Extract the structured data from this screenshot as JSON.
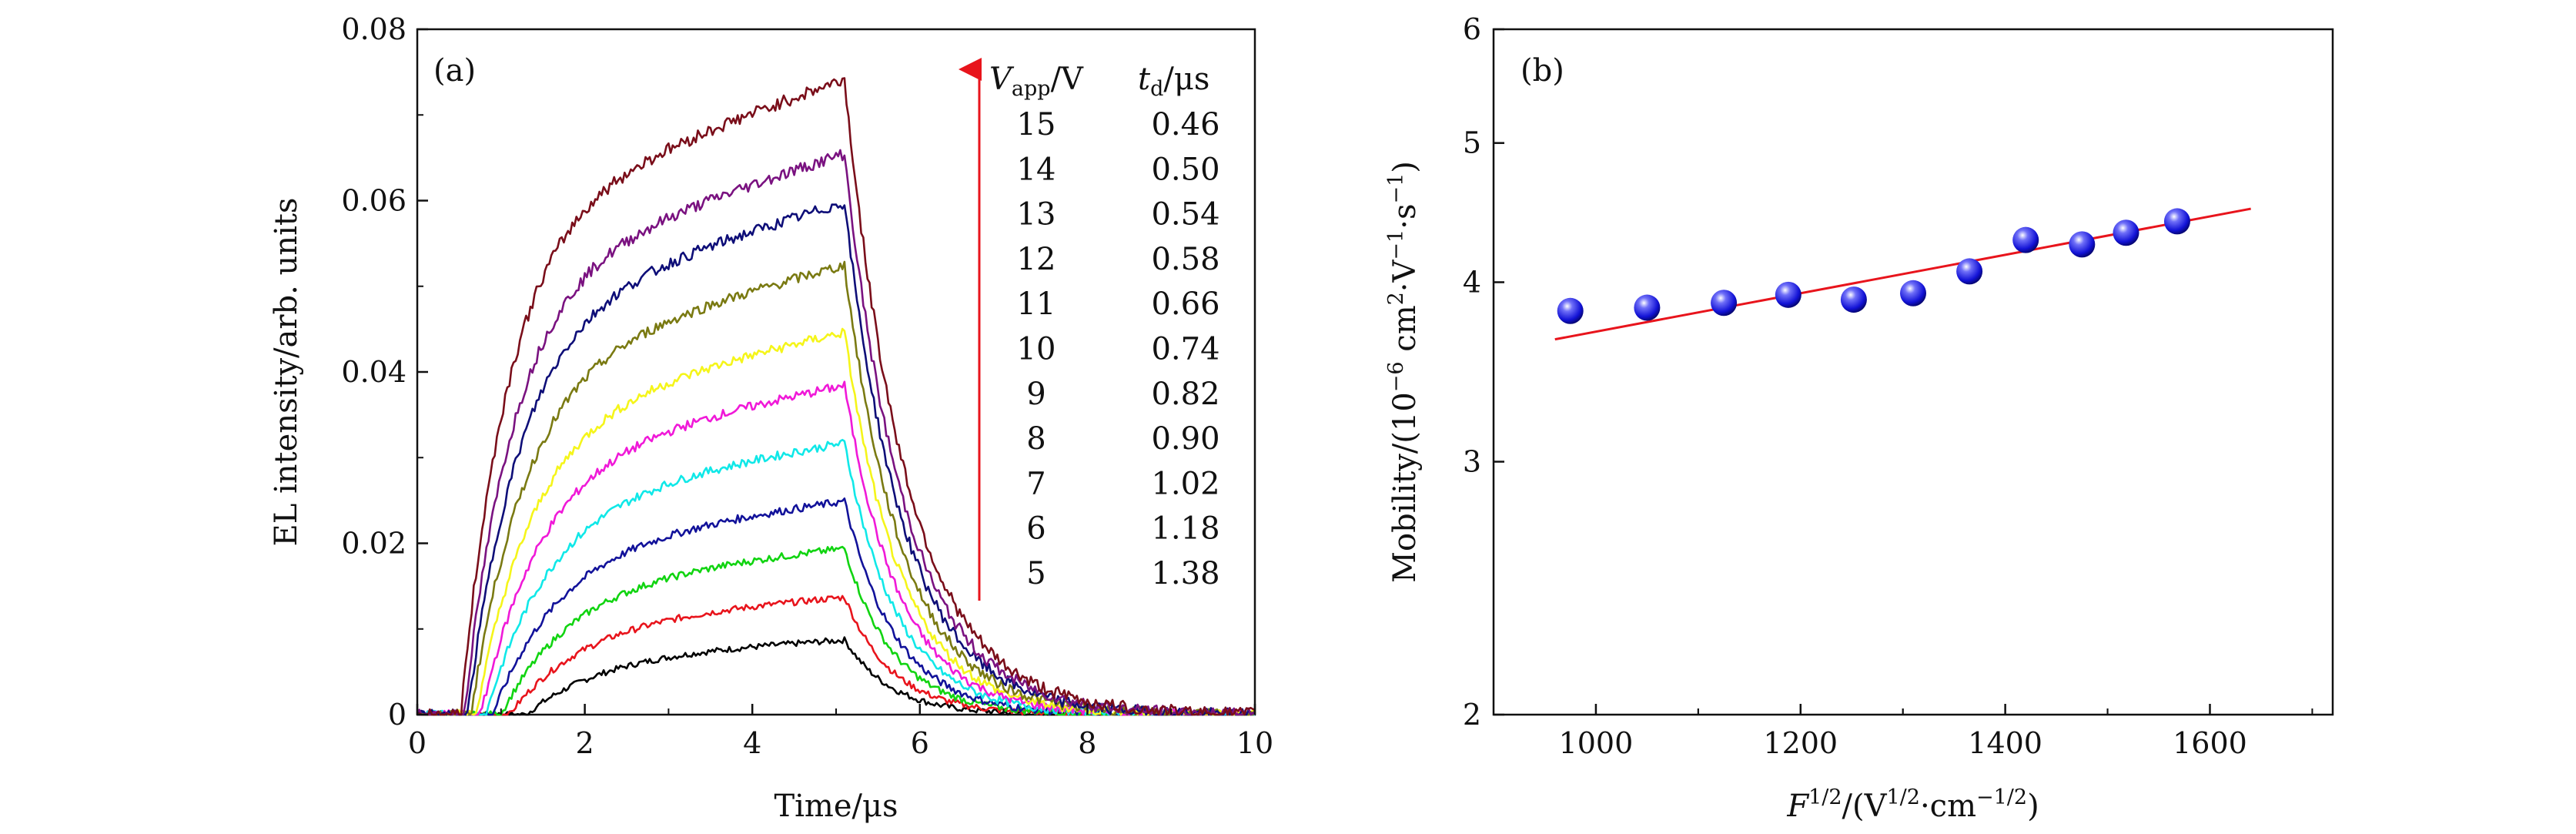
{
  "chart_data": [
    {
      "panel_label": "(a)",
      "type": "line",
      "xlabel": "Time/μs",
      "ylabel": "EL intensity/arb. units",
      "xlim": [
        0,
        10
      ],
      "ylim": [
        0,
        0.08
      ],
      "xticks": [
        0,
        2,
        4,
        6,
        8,
        10
      ],
      "yticks": [
        0,
        0.02,
        0.04,
        0.06,
        0.08
      ],
      "ytick_labels": [
        "0",
        "0.02",
        "0.04",
        "0.06",
        "0.08"
      ],
      "grid": false,
      "legend": {
        "placement": "top-right",
        "header_vapp": "V",
        "header_vapp_sub": "app",
        "header_vapp_unit": "/V",
        "header_td": "t",
        "header_td_sub": "d",
        "header_td_unit": "/μs",
        "arrow": "increasing voltage upward"
      },
      "series": [
        {
          "vapp": "5",
          "td": "1.38",
          "color": "#000000",
          "onset": 1.3,
          "peak": 0.0088
        },
        {
          "vapp": "6",
          "td": "1.18",
          "color": "#e8141c",
          "onset": 1.1,
          "peak": 0.0138
        },
        {
          "vapp": "7",
          "td": "1.02",
          "color": "#11d411",
          "onset": 1.0,
          "peak": 0.0195
        },
        {
          "vapp": "8",
          "td": "0.90",
          "color": "#12129a",
          "onset": 0.9,
          "peak": 0.025
        },
        {
          "vapp": "9",
          "td": "0.82",
          "color": "#10e8e8",
          "onset": 0.82,
          "peak": 0.0318
        },
        {
          "vapp": "10",
          "td": "0.74",
          "color": "#f019d8",
          "onset": 0.76,
          "peak": 0.0385
        },
        {
          "vapp": "11",
          "td": "0.66",
          "color": "#f5f51a",
          "onset": 0.7,
          "peak": 0.0447
        },
        {
          "vapp": "12",
          "td": "0.58",
          "color": "#7a7a12",
          "onset": 0.64,
          "peak": 0.0525
        },
        {
          "vapp": "13",
          "td": "0.54",
          "color": "#0e0e78",
          "onset": 0.6,
          "peak": 0.0598
        },
        {
          "vapp": "14",
          "td": "0.50",
          "color": "#7a1280",
          "onset": 0.56,
          "peak": 0.0655
        },
        {
          "vapp": "15",
          "td": "0.46",
          "color": "#7a0e1a",
          "onset": 0.52,
          "peak": 0.0742
        }
      ],
      "pulse_end": 5.1
    },
    {
      "panel_label": "(b)",
      "type": "scatter",
      "xlabel_parts": [
        "F",
        "1/2",
        "/(V",
        "1/2",
        "·cm",
        "−1/2",
        ")"
      ],
      "ylabel_parts": [
        "Mobility/(10",
        "−6",
        " cm",
        "2",
        "·V",
        "−1",
        "·s",
        "−1",
        ")"
      ],
      "xlim": [
        900,
        1720
      ],
      "ylim": [
        2,
        6
      ],
      "y_scale": "log",
      "xticks": [
        1000,
        1200,
        1400,
        1600
      ],
      "yticks": [
        2,
        3,
        4,
        5,
        6
      ],
      "grid": false,
      "points": {
        "color": "#1010e0",
        "x": [
          975,
          1050,
          1125,
          1188,
          1252,
          1310,
          1365,
          1420,
          1475,
          1518,
          1568
        ],
        "y": [
          3.82,
          3.84,
          3.87,
          3.92,
          3.89,
          3.93,
          4.07,
          4.28,
          4.25,
          4.33,
          4.41
        ]
      },
      "fit": {
        "color": "#e8141c",
        "x": [
          960,
          1640
        ],
        "y": [
          3.65,
          4.5
        ]
      }
    }
  ]
}
